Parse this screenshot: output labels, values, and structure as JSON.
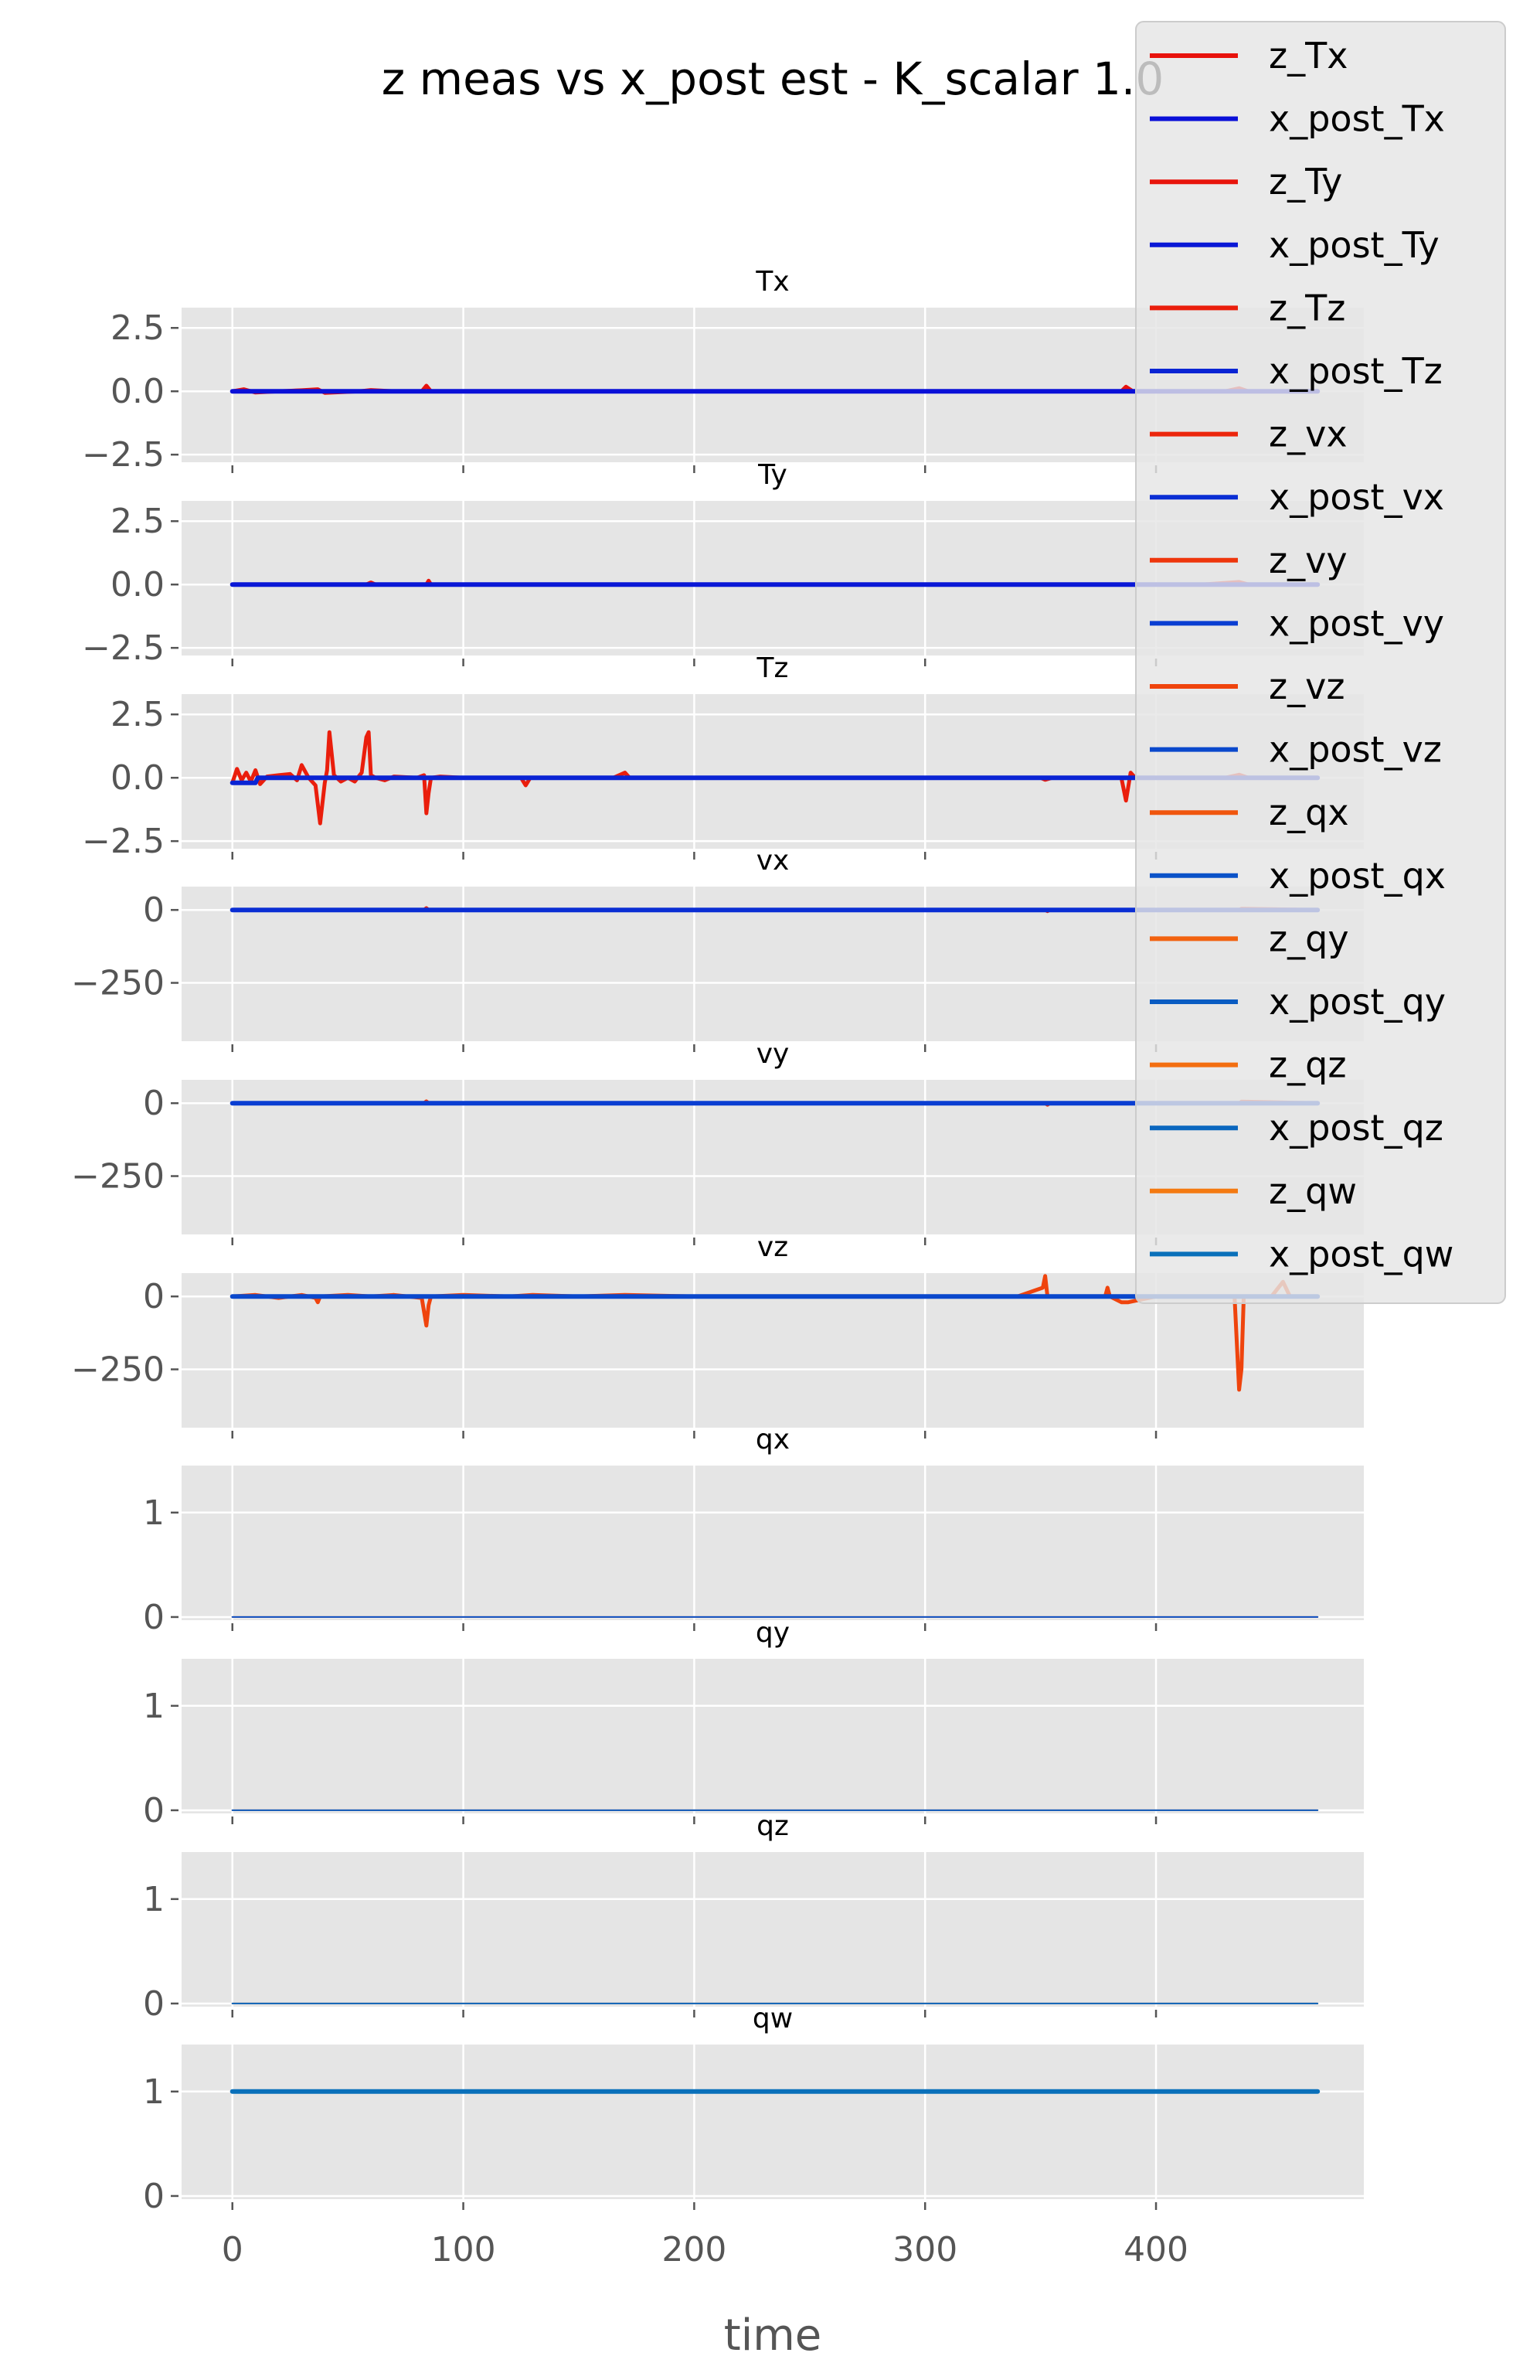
{
  "chart_data": {
    "type": "line",
    "title": "z meas vs x_post est - K_scalar 1.0",
    "xlabel": "time",
    "xlim": [
      -22,
      490
    ],
    "xticks": [
      0,
      100,
      200,
      300,
      400
    ],
    "x_end": 470,
    "grid": true,
    "legend_position": "top-right",
    "legend": [
      {
        "label": "z_Tx",
        "color": "#e8120c"
      },
      {
        "label": "x_post_Tx",
        "color": "#0a10d8"
      },
      {
        "label": "z_Ty",
        "color": "#e8150c"
      },
      {
        "label": "x_post_Ty",
        "color": "#0a18d6"
      },
      {
        "label": "z_Tz",
        "color": "#ea1e0c"
      },
      {
        "label": "x_post_Tz",
        "color": "#0a24d4"
      },
      {
        "label": "z_vx",
        "color": "#ec260c"
      },
      {
        "label": "x_post_vx",
        "color": "#0a2ed4"
      },
      {
        "label": "z_vy",
        "color": "#ee360c"
      },
      {
        "label": "x_post_vy",
        "color": "#0a3ed2"
      },
      {
        "label": "z_vz",
        "color": "#ef440d"
      },
      {
        "label": "x_post_vz",
        "color": "#0a48cc"
      },
      {
        "label": "z_qx",
        "color": "#f0560e"
      },
      {
        "label": "x_post_qx",
        "color": "#0a52c8"
      },
      {
        "label": "z_qy",
        "color": "#f2620f"
      },
      {
        "label": "x_post_qy",
        "color": "#0a5cc2"
      },
      {
        "label": "z_qz",
        "color": "#f36e10"
      },
      {
        "label": "x_post_qz",
        "color": "#0a66be"
      },
      {
        "label": "z_qw",
        "color": "#f47a12"
      },
      {
        "label": "x_post_qw",
        "color": "#0a70ba"
      }
    ],
    "subplots": [
      {
        "title": "Tx",
        "ylim": [
          -2.8,
          3.3
        ],
        "yticks": [
          2.5,
          0.0,
          -2.5
        ],
        "ytick_labels": [
          "2.5",
          "0.0",
          "−2.5"
        ],
        "series": [
          {
            "name": "z_Tx",
            "color": "#e8120c",
            "width": 5,
            "x": [
              0,
              5,
              10,
              20,
              30,
              37,
              40,
              55,
              60,
              70,
              82,
              84,
              86,
              100,
              150,
              200,
              250,
              300,
              350,
              385,
              387,
              390,
              400,
              430,
              436,
              440,
              470
            ],
            "y": [
              0,
              0.08,
              -0.05,
              0,
              0.04,
              0.08,
              -0.06,
              0,
              0.05,
              0,
              0,
              0.22,
              0,
              0,
              0,
              0,
              0,
              0,
              0,
              0,
              0.18,
              0,
              0,
              0,
              0.12,
              0,
              0
            ]
          },
          {
            "name": "x_post_Tx",
            "color": "#0a10d8",
            "width": 6,
            "x": [
              0,
              470
            ],
            "y": [
              0,
              0
            ]
          }
        ]
      },
      {
        "title": "Ty",
        "ylim": [
          -2.8,
          3.3
        ],
        "yticks": [
          2.5,
          0.0,
          -2.5
        ],
        "ytick_labels": [
          "2.5",
          "0.0",
          "−2.5"
        ],
        "series": [
          {
            "name": "z_Ty",
            "color": "#e8150c",
            "width": 5,
            "x": [
              0,
              10,
              58,
              60,
              62,
              84,
              85,
              86,
              200,
              350,
              420,
              436,
              440,
              470
            ],
            "y": [
              0,
              0,
              0,
              0.08,
              0,
              0,
              0.15,
              0,
              0,
              0,
              0,
              0.1,
              0,
              0
            ]
          },
          {
            "name": "x_post_Ty",
            "color": "#0a18d6",
            "width": 6,
            "x": [
              0,
              470
            ],
            "y": [
              0,
              0
            ]
          }
        ]
      },
      {
        "title": "Tz",
        "ylim": [
          -2.8,
          3.3
        ],
        "yticks": [
          2.5,
          0.0,
          -2.5
        ],
        "ytick_labels": [
          "2.5",
          "0.0",
          "−2.5"
        ],
        "series": [
          {
            "name": "z_Tz",
            "color": "#ea1e0c",
            "width": 5,
            "x": [
              0,
              2,
              4,
              6,
              8,
              10,
              12,
              15,
              20,
              25,
              28,
              30,
              33,
              36,
              38,
              40,
              41,
              42,
              44,
              47,
              50,
              53,
              56,
              58,
              59,
              60,
              62,
              66,
              70,
              80,
              83,
              84,
              85,
              86,
              90,
              100,
              110,
              125,
              127,
              129,
              135,
              150,
              165,
              170,
              172,
              175,
              200,
              250,
              300,
              350,
              352,
              355,
              380,
              385,
              387,
              389,
              391,
              400,
              420,
              430,
              436,
              440,
              450,
              470
            ],
            "y": [
              -0.2,
              0.35,
              -0.1,
              0.2,
              -0.15,
              0.3,
              -0.25,
              0.05,
              0.1,
              0.15,
              -0.1,
              0.5,
              0,
              -0.3,
              -1.8,
              -0.2,
              0.3,
              1.8,
              0.1,
              -0.15,
              0,
              -0.15,
              0.2,
              1.6,
              1.8,
              0.1,
              0,
              -0.1,
              0.05,
              0,
              0.1,
              -1.4,
              -0.6,
              0,
              0.05,
              0,
              0,
              0,
              -0.3,
              0,
              0,
              0,
              0,
              0.2,
              0,
              0,
              0,
              0,
              0,
              0,
              -0.08,
              0,
              0,
              0,
              -0.9,
              0.2,
              0,
              0,
              0,
              0,
              0.12,
              0,
              0,
              0
            ]
          },
          {
            "name": "x_post_Tz",
            "color": "#0a24d4",
            "width": 6,
            "x": [
              0,
              10,
              11,
              36,
              37,
              470
            ],
            "y": [
              -0.2,
              -0.2,
              0,
              0,
              0,
              0
            ]
          }
        ]
      },
      {
        "title": "vx",
        "ylim": [
          -450,
          80
        ],
        "yticks": [
          0,
          -250
        ],
        "ytick_labels": [
          "0",
          "−250"
        ],
        "series": [
          {
            "name": "z_vx",
            "color": "#ec260c",
            "width": 5,
            "x": [
              0,
              83,
              84,
              85,
              200,
              352,
              353,
              354,
              436,
              437,
              470
            ],
            "y": [
              0,
              0,
              6,
              0,
              0,
              0,
              -4,
              0,
              0,
              4,
              0
            ]
          },
          {
            "name": "x_post_vx",
            "color": "#0a2ed4",
            "width": 6,
            "x": [
              0,
              470
            ],
            "y": [
              0,
              0
            ]
          }
        ]
      },
      {
        "title": "vy",
        "ylim": [
          -450,
          80
        ],
        "yticks": [
          0,
          -250
        ],
        "ytick_labels": [
          "0",
          "−250"
        ],
        "series": [
          {
            "name": "z_vy",
            "color": "#ee360c",
            "width": 5,
            "x": [
              0,
              83,
              84,
              85,
              200,
              352,
              353,
              354,
              436,
              437,
              470
            ],
            "y": [
              0,
              0,
              6,
              0,
              0,
              0,
              -5,
              0,
              0,
              5,
              0
            ]
          },
          {
            "name": "x_post_vy",
            "color": "#0a3ed2",
            "width": 6,
            "x": [
              0,
              470
            ],
            "y": [
              0,
              0
            ]
          }
        ]
      },
      {
        "title": "vz",
        "ylim": [
          -450,
          80
        ],
        "yticks": [
          0,
          -250
        ],
        "ytick_labels": [
          "0",
          "−250"
        ],
        "series": [
          {
            "name": "z_vz",
            "color": "#ef440d",
            "width": 5,
            "x": [
              0,
              10,
              20,
              30,
              36,
              37,
              38,
              50,
              60,
              70,
              82,
              84,
              85,
              86,
              100,
              120,
              130,
              150,
              170,
              200,
              250,
              300,
              340,
              351,
              352,
              353,
              360,
              378,
              379,
              380,
              385,
              388,
              400,
              420,
              434,
              436,
              437,
              438,
              440,
              450,
              455,
              458,
              470
            ],
            "y": [
              0,
              5,
              -5,
              5,
              -5,
              -20,
              0,
              5,
              0,
              5,
              -5,
              -100,
              -30,
              0,
              5,
              0,
              5,
              0,
              5,
              0,
              0,
              0,
              0,
              30,
              70,
              0,
              0,
              0,
              30,
              0,
              -20,
              -20,
              0,
              0,
              0,
              -320,
              -250,
              0,
              0,
              0,
              50,
              0,
              0
            ]
          },
          {
            "name": "x_post_vz",
            "color": "#0a48cc",
            "width": 6,
            "x": [
              0,
              470
            ],
            "y": [
              0,
              0
            ]
          }
        ]
      },
      {
        "title": "qx",
        "ylim": [
          -0.03,
          1.45
        ],
        "yticks": [
          1,
          0
        ],
        "ytick_labels": [
          "1",
          "0"
        ],
        "series": [
          {
            "name": "z_qx",
            "color": "#f0560e",
            "width": 2,
            "x": [
              0,
              470
            ],
            "y": [
              0,
              0
            ]
          },
          {
            "name": "x_post_qx",
            "color": "#0a52c8",
            "width": 2,
            "x": [
              0,
              470
            ],
            "y": [
              0,
              0
            ]
          }
        ]
      },
      {
        "title": "qy",
        "ylim": [
          -0.03,
          1.45
        ],
        "yticks": [
          1,
          0
        ],
        "ytick_labels": [
          "1",
          "0"
        ],
        "series": [
          {
            "name": "z_qy",
            "color": "#f2620f",
            "width": 2,
            "x": [
              0,
              470
            ],
            "y": [
              0,
              0
            ]
          },
          {
            "name": "x_post_qy",
            "color": "#0a5cc2",
            "width": 2,
            "x": [
              0,
              470
            ],
            "y": [
              0,
              0
            ]
          }
        ]
      },
      {
        "title": "qz",
        "ylim": [
          -0.03,
          1.45
        ],
        "yticks": [
          1,
          0
        ],
        "ytick_labels": [
          "1",
          "0"
        ],
        "series": [
          {
            "name": "z_qz",
            "color": "#f36e10",
            "width": 2,
            "x": [
              0,
              470
            ],
            "y": [
              0,
              0
            ]
          },
          {
            "name": "x_post_qz",
            "color": "#0a66be",
            "width": 2,
            "x": [
              0,
              470
            ],
            "y": [
              0,
              0
            ]
          }
        ]
      },
      {
        "title": "qw",
        "ylim": [
          -0.03,
          1.45
        ],
        "yticks": [
          1,
          0
        ],
        "ytick_labels": [
          "1",
          "0"
        ],
        "series": [
          {
            "name": "z_qw",
            "color": "#f47a12",
            "width": 5,
            "x": [
              0,
              470
            ],
            "y": [
              1,
              1
            ]
          },
          {
            "name": "x_post_qw",
            "color": "#0a70ba",
            "width": 6,
            "x": [
              0,
              470
            ],
            "y": [
              1,
              1
            ]
          }
        ]
      }
    ]
  }
}
